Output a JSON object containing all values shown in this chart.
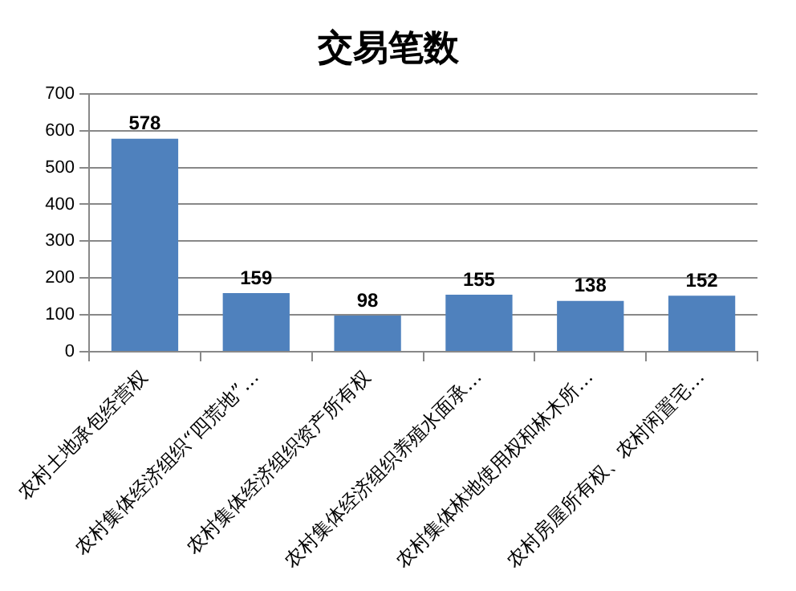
{
  "chart_data": {
    "type": "bar",
    "title": "交易笔数",
    "categories": [
      "农村土地承包经营权",
      "农村集体经济组织“四荒地”…",
      "农村集体经济组织资产所有权",
      "农村集体经济组织养殖水面承…",
      "农村集体林地使用权和林木所…",
      "农村房屋所有权、农村闲置宅…"
    ],
    "values": [
      578,
      159,
      98,
      155,
      138,
      152
    ],
    "color": "#4f81bd",
    "ylim": [
      0,
      700
    ],
    "yticks": [
      0,
      100,
      200,
      300,
      400,
      500,
      600,
      700
    ],
    "grid": "y",
    "data_labels": true
  }
}
